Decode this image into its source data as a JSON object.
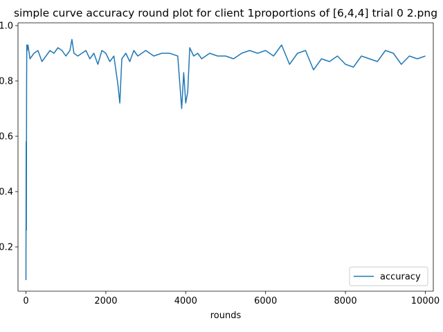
{
  "chart_data": {
    "type": "line",
    "title": "simple curve accuracy round plot for client 1proportions of [6,4,4] trial 0 2.png",
    "xlabel": "rounds",
    "ylabel": "",
    "xlim": [
      -200,
      10200
    ],
    "ylim": [
      0.04,
      1.01
    ],
    "x_ticks": [
      0,
      2000,
      4000,
      6000,
      8000,
      10000
    ],
    "x_tick_labels": [
      "0",
      "2000",
      "4000",
      "6000",
      "8000",
      "10000"
    ],
    "y_ticks": [
      0.2,
      0.4,
      0.6,
      0.8,
      1.0
    ],
    "y_tick_labels": [
      "0.2",
      "0.4",
      "0.6",
      "0.8",
      "1.0"
    ],
    "grid": false,
    "legend_position": "lower-right",
    "series": [
      {
        "name": "accuracy",
        "color": "#1f77b4",
        "x": [
          0,
          5,
          10,
          15,
          20,
          30,
          50,
          100,
          200,
          300,
          400,
          500,
          600,
          700,
          800,
          900,
          1000,
          1100,
          1150,
          1200,
          1300,
          1400,
          1500,
          1600,
          1700,
          1800,
          1900,
          2000,
          2100,
          2200,
          2300,
          2350,
          2400,
          2500,
          2600,
          2700,
          2800,
          2900,
          3000,
          3200,
          3400,
          3600,
          3800,
          3900,
          3950,
          4000,
          4050,
          4100,
          4200,
          4300,
          4400,
          4600,
          4800,
          5000,
          5200,
          5400,
          5600,
          5800,
          6000,
          6200,
          6400,
          6600,
          6800,
          7000,
          7200,
          7400,
          7600,
          7800,
          8000,
          8200,
          8400,
          8600,
          8800,
          9000,
          9200,
          9400,
          9600,
          9800,
          10000
        ],
        "values": [
          0.08,
          0.58,
          0.26,
          0.77,
          0.93,
          0.91,
          0.93,
          0.88,
          0.9,
          0.91,
          0.87,
          0.89,
          0.91,
          0.9,
          0.92,
          0.91,
          0.89,
          0.91,
          0.95,
          0.9,
          0.89,
          0.9,
          0.91,
          0.88,
          0.9,
          0.86,
          0.91,
          0.9,
          0.87,
          0.89,
          0.79,
          0.72,
          0.88,
          0.9,
          0.87,
          0.91,
          0.89,
          0.9,
          0.91,
          0.89,
          0.9,
          0.9,
          0.89,
          0.7,
          0.83,
          0.72,
          0.76,
          0.92,
          0.89,
          0.9,
          0.88,
          0.9,
          0.89,
          0.89,
          0.88,
          0.9,
          0.91,
          0.9,
          0.91,
          0.89,
          0.93,
          0.86,
          0.9,
          0.91,
          0.84,
          0.88,
          0.87,
          0.89,
          0.86,
          0.85,
          0.89,
          0.88,
          0.87,
          0.91,
          0.9,
          0.86,
          0.89,
          0.88,
          0.89
        ]
      }
    ]
  }
}
